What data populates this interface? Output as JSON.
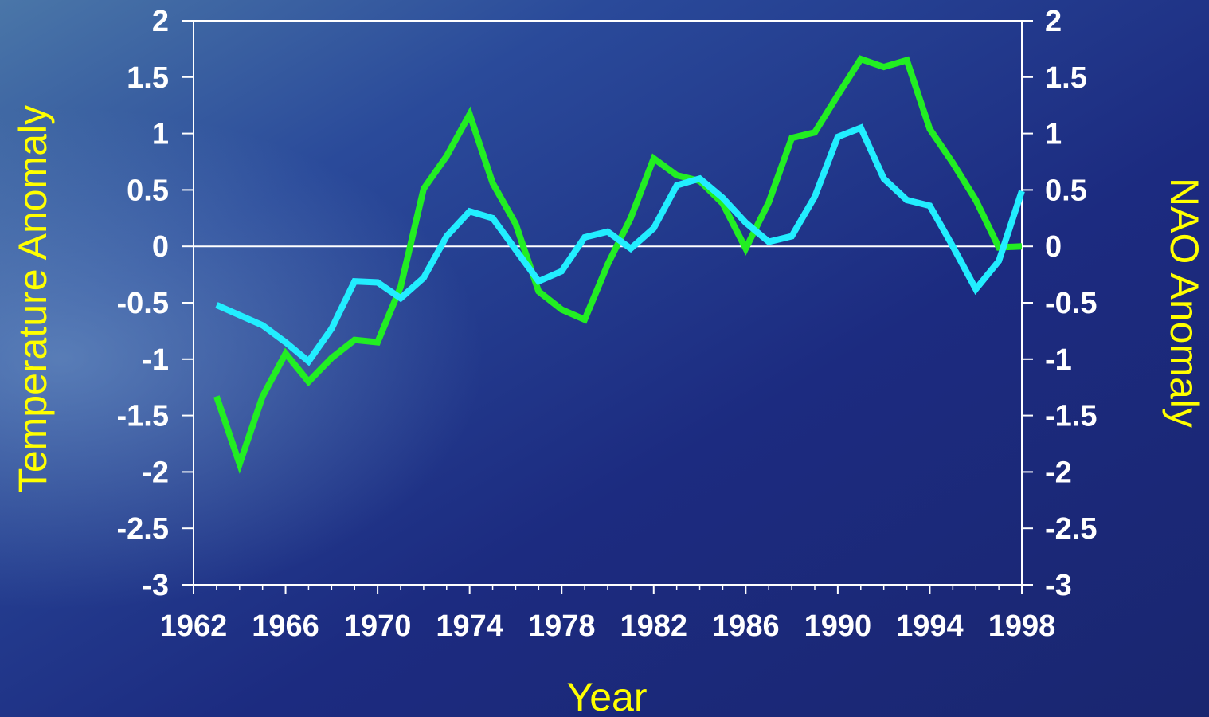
{
  "chart_data": {
    "type": "line",
    "xlabel": "Year",
    "ylabel_left": "Temperature Anomaly",
    "ylabel_right": "NAO Anomaly",
    "xlim": [
      1962,
      1998
    ],
    "ylim_left": [
      -3,
      2
    ],
    "ylim_right": [
      -3,
      2
    ],
    "x_ticks": [
      1962,
      1966,
      1970,
      1974,
      1978,
      1982,
      1986,
      1990,
      1994,
      1998
    ],
    "y_ticks": [
      2,
      1.5,
      1,
      0.5,
      0,
      -0.5,
      -1,
      -1.5,
      -2,
      -2.5,
      -3
    ],
    "zero_line": true,
    "grid": false,
    "legend": "none",
    "colors": {
      "background": "#1b2a7a",
      "axis": "#ffffff",
      "axis_title": "#ffff00",
      "temperature_series": "#22ee22",
      "nao_series": "#22eeff"
    },
    "series": [
      {
        "axis": "left",
        "color": "#22ee22",
        "x": [
          1963,
          1964,
          1965,
          1966,
          1967,
          1968,
          1969,
          1970,
          1971,
          1972,
          1973,
          1974,
          1975,
          1976,
          1977,
          1978,
          1979,
          1980,
          1981,
          1982,
          1983,
          1984,
          1985,
          1986,
          1987,
          1988,
          1989,
          1990,
          1991,
          1992,
          1993,
          1994,
          1995,
          1996,
          1997,
          1998
        ],
        "values": [
          -1.33,
          -1.93,
          -1.33,
          -0.95,
          -1.2,
          -0.99,
          -0.83,
          -0.85,
          -0.36,
          0.51,
          0.8,
          1.17,
          0.56,
          0.2,
          -0.4,
          -0.56,
          -0.65,
          -0.16,
          0.25,
          0.78,
          0.63,
          0.58,
          0.38,
          -0.02,
          0.39,
          0.96,
          1.01,
          1.34,
          1.66,
          1.59,
          1.65,
          1.04,
          0.74,
          0.41,
          -0.01,
          0.0
        ]
      },
      {
        "axis": "right",
        "color": "#22eeff",
        "x": [
          1963,
          1964,
          1965,
          1966,
          1967,
          1968,
          1969,
          1970,
          1971,
          1972,
          1973,
          1974,
          1975,
          1976,
          1977,
          1978,
          1979,
          1980,
          1981,
          1982,
          1983,
          1984,
          1985,
          1986,
          1987,
          1988,
          1989,
          1990,
          1991,
          1992,
          1993,
          1994,
          1995,
          1996,
          1997,
          1998
        ],
        "values": [
          -0.52,
          -0.61,
          -0.7,
          -0.85,
          -1.02,
          -0.73,
          -0.31,
          -0.32,
          -0.46,
          -0.28,
          0.09,
          0.31,
          0.25,
          -0.03,
          -0.31,
          -0.22,
          0.08,
          0.13,
          -0.02,
          0.16,
          0.54,
          0.6,
          0.43,
          0.21,
          0.04,
          0.09,
          0.44,
          0.97,
          1.05,
          0.6,
          0.41,
          0.36,
          0.0,
          -0.38,
          -0.13,
          0.49
        ]
      }
    ]
  }
}
